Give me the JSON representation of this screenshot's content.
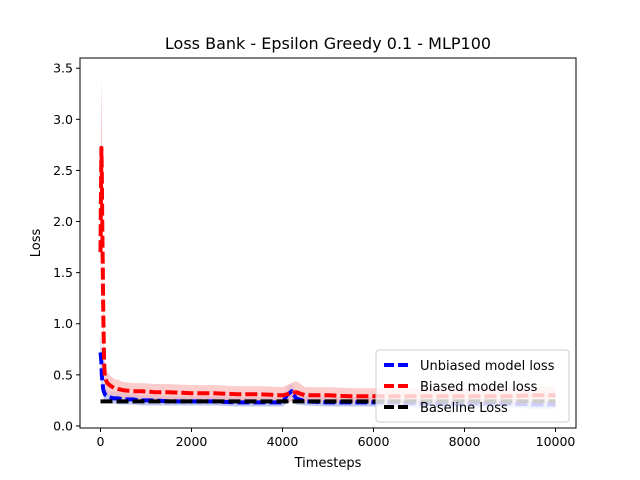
{
  "chart_data": {
    "type": "line",
    "title": "Loss Bank - Epsilon Greedy 0.1 - MLP100",
    "xlabel": "Timesteps",
    "ylabel": "Loss",
    "xlim": [
      -450,
      10450
    ],
    "ylim": [
      -0.02,
      3.6
    ],
    "xticks": [
      0,
      2000,
      4000,
      6000,
      8000,
      10000
    ],
    "yticks": [
      0.0,
      0.5,
      1.0,
      1.5,
      2.0,
      2.5,
      3.0,
      3.5
    ],
    "xtick_labels": [
      "0",
      "2000",
      "4000",
      "6000",
      "8000",
      "10000"
    ],
    "ytick_labels": [
      "0.0",
      "0.5",
      "1.0",
      "1.5",
      "2.0",
      "2.5",
      "3.0",
      "3.5"
    ],
    "grid": false,
    "legend": "lower-right",
    "series": [
      {
        "name": "Unbiased model loss",
        "color": "#0000ff",
        "band_color": "#aab6ee",
        "style": "dashed",
        "x": [
          0,
          10,
          20,
          30,
          40,
          50,
          60,
          70,
          80,
          100,
          120,
          150,
          200,
          300,
          400,
          500,
          700,
          900,
          1200,
          1500,
          2000,
          2500,
          3000,
          3500,
          4000,
          4100,
          4200,
          4300,
          4500,
          5000,
          5500,
          6000,
          6500,
          7000,
          7500,
          8000,
          8500,
          9000,
          9500,
          10000
        ],
        "y": [
          0.72,
          0.68,
          0.62,
          0.5,
          0.44,
          0.4,
          0.36,
          0.34,
          0.33,
          0.31,
          0.3,
          0.29,
          0.28,
          0.27,
          0.27,
          0.26,
          0.26,
          0.25,
          0.25,
          0.24,
          0.24,
          0.24,
          0.23,
          0.23,
          0.23,
          0.3,
          0.34,
          0.27,
          0.24,
          0.23,
          0.23,
          0.23,
          0.23,
          0.22,
          0.22,
          0.22,
          0.22,
          0.22,
          0.21,
          0.21
        ],
        "band_low": [
          0.5,
          0.5,
          0.45,
          0.38,
          0.34,
          0.31,
          0.29,
          0.27,
          0.26,
          0.25,
          0.24,
          0.23,
          0.22,
          0.22,
          0.21,
          0.21,
          0.21,
          0.2,
          0.2,
          0.2,
          0.2,
          0.2,
          0.19,
          0.19,
          0.19,
          0.22,
          0.24,
          0.21,
          0.2,
          0.19,
          0.19,
          0.19,
          0.19,
          0.18,
          0.18,
          0.18,
          0.18,
          0.18,
          0.17,
          0.17
        ],
        "band_high": [
          0.9,
          0.85,
          0.78,
          0.65,
          0.56,
          0.5,
          0.45,
          0.42,
          0.4,
          0.38,
          0.37,
          0.35,
          0.34,
          0.33,
          0.33,
          0.32,
          0.31,
          0.3,
          0.3,
          0.29,
          0.29,
          0.29,
          0.28,
          0.28,
          0.28,
          0.38,
          0.42,
          0.33,
          0.29,
          0.28,
          0.28,
          0.28,
          0.28,
          0.27,
          0.27,
          0.27,
          0.27,
          0.27,
          0.26,
          0.26
        ]
      },
      {
        "name": "Biased model loss",
        "color": "#ff0000",
        "band_color": "#f9bcbc",
        "style": "dashed",
        "x": [
          0,
          10,
          20,
          30,
          40,
          50,
          60,
          70,
          80,
          90,
          100,
          120,
          150,
          200,
          300,
          400,
          500,
          700,
          900,
          1200,
          1500,
          2000,
          2500,
          3000,
          3500,
          4000,
          4200,
          4300,
          4500,
          5000,
          5500,
          6000,
          6500,
          7000,
          7500,
          8000,
          8500,
          9000,
          9500,
          10000
        ],
        "y": [
          1.7,
          2.2,
          2.72,
          2.5,
          1.95,
          1.55,
          1.15,
          0.85,
          0.62,
          0.52,
          0.48,
          0.45,
          0.42,
          0.4,
          0.37,
          0.36,
          0.35,
          0.34,
          0.34,
          0.33,
          0.33,
          0.32,
          0.32,
          0.31,
          0.31,
          0.3,
          0.32,
          0.33,
          0.3,
          0.3,
          0.29,
          0.29,
          0.29,
          0.29,
          0.29,
          0.29,
          0.29,
          0.29,
          0.3,
          0.3
        ],
        "band_low": [
          1.2,
          1.6,
          2.1,
          1.95,
          1.5,
          1.15,
          0.85,
          0.62,
          0.46,
          0.38,
          0.35,
          0.33,
          0.31,
          0.3,
          0.28,
          0.27,
          0.27,
          0.26,
          0.26,
          0.25,
          0.25,
          0.25,
          0.24,
          0.24,
          0.24,
          0.23,
          0.24,
          0.25,
          0.23,
          0.23,
          0.22,
          0.22,
          0.22,
          0.22,
          0.22,
          0.22,
          0.22,
          0.22,
          0.23,
          0.23
        ],
        "band_high": [
          2.2,
          2.8,
          3.42,
          3.1,
          2.45,
          1.95,
          1.45,
          1.08,
          0.78,
          0.66,
          0.61,
          0.57,
          0.53,
          0.5,
          0.46,
          0.45,
          0.43,
          0.42,
          0.42,
          0.41,
          0.41,
          0.4,
          0.4,
          0.39,
          0.39,
          0.38,
          0.42,
          0.44,
          0.38,
          0.38,
          0.37,
          0.37,
          0.37,
          0.37,
          0.37,
          0.37,
          0.37,
          0.37,
          0.38,
          0.38
        ]
      },
      {
        "name": "Baseline Loss",
        "color": "#000000",
        "style": "dashed",
        "x": [
          0,
          10000
        ],
        "y": [
          0.24,
          0.24
        ]
      }
    ]
  }
}
